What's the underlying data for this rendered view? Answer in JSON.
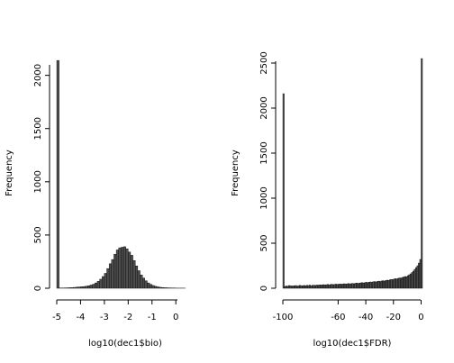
{
  "chart_data": [
    {
      "type": "bar",
      "title": "",
      "xlabel": "log10(dec1$bio)",
      "ylabel": "Frequency",
      "xlim": [
        -5,
        0.75
      ],
      "ylim": [
        0,
        2200
      ],
      "xticks": [
        "-5",
        "-4",
        "-3",
        "-2",
        "-1",
        "0"
      ],
      "yticks": [
        "0",
        "500",
        "1000",
        "1500",
        "2000"
      ],
      "bin_width": 0.1,
      "bins_x0": [
        -5.0,
        -4.9,
        -4.8,
        -4.7,
        -4.6,
        -4.5,
        -4.4,
        -4.3,
        -4.2,
        -4.1,
        -4.0,
        -3.9,
        -3.8,
        -3.7,
        -3.6,
        -3.5,
        -3.4,
        -3.3,
        -3.2,
        -3.1,
        -3.0,
        -2.9,
        -2.8,
        -2.7,
        -2.6,
        -2.5,
        -2.4,
        -2.3,
        -2.2,
        -2.1,
        -2.0,
        -1.9,
        -1.8,
        -1.7,
        -1.6,
        -1.5,
        -1.4,
        -1.3,
        -1.2,
        -1.1,
        -1.0,
        -0.9,
        -0.8,
        -0.7,
        -0.6,
        -0.5,
        -0.4,
        -0.3,
        -0.2,
        -0.1,
        0.0,
        0.1,
        0.2,
        0.3,
        0.4,
        0.5,
        0.6,
        0.7
      ],
      "values": [
        2140,
        2,
        2,
        3,
        4,
        5,
        6,
        8,
        10,
        12,
        14,
        16,
        20,
        24,
        30,
        38,
        50,
        65,
        85,
        110,
        140,
        185,
        230,
        270,
        320,
        360,
        380,
        385,
        390,
        370,
        340,
        310,
        260,
        210,
        165,
        125,
        95,
        70,
        50,
        36,
        26,
        18,
        13,
        9,
        7,
        5,
        4,
        3,
        2,
        2,
        1,
        1,
        1,
        1,
        0,
        0,
        0,
        0
      ]
    },
    {
      "type": "bar",
      "title": "",
      "xlabel": "log10(dec1$FDR)",
      "ylabel": "Frequency",
      "xlim": [
        -100,
        1
      ],
      "ylim": [
        0,
        2600
      ],
      "xticks": [
        "-100",
        "-60",
        "-40",
        "-20",
        "0"
      ],
      "yticks": [
        "0",
        "500",
        "1000",
        "1500",
        "2000",
        "2500"
      ],
      "bin_width": 1,
      "bins_x0": [
        -100,
        -99,
        -98,
        -97,
        -96,
        -95,
        -94,
        -93,
        -92,
        -91,
        -90,
        -89,
        -88,
        -87,
        -86,
        -85,
        -84,
        -83,
        -82,
        -81,
        -80,
        -79,
        -78,
        -77,
        -76,
        -75,
        -74,
        -73,
        -72,
        -71,
        -70,
        -69,
        -68,
        -67,
        -66,
        -65,
        -64,
        -63,
        -62,
        -61,
        -60,
        -59,
        -58,
        -57,
        -56,
        -55,
        -54,
        -53,
        -52,
        -51,
        -50,
        -49,
        -48,
        -47,
        -46,
        -45,
        -44,
        -43,
        -42,
        -41,
        -40,
        -39,
        -38,
        -37,
        -36,
        -35,
        -34,
        -33,
        -32,
        -31,
        -30,
        -29,
        -28,
        -27,
        -26,
        -25,
        -24,
        -23,
        -22,
        -21,
        -20,
        -19,
        -18,
        -17,
        -16,
        -15,
        -14,
        -13,
        -12,
        -11,
        -10,
        -9,
        -8,
        -7,
        -6,
        -5,
        -4,
        -3,
        -2,
        -1,
        0
      ],
      "values": [
        2160,
        20,
        25,
        22,
        30,
        28,
        24,
        26,
        27,
        30,
        22,
        28,
        32,
        26,
        29,
        31,
        27,
        33,
        30,
        35,
        28,
        32,
        34,
        30,
        36,
        33,
        38,
        35,
        37,
        40,
        36,
        39,
        42,
        38,
        41,
        44,
        40,
        43,
        46,
        42,
        45,
        48,
        44,
        47,
        50,
        46,
        49,
        52,
        48,
        51,
        54,
        50,
        55,
        58,
        53,
        57,
        60,
        62,
        58,
        64,
        66,
        62,
        68,
        70,
        66,
        72,
        74,
        70,
        76,
        79,
        75,
        81,
        84,
        80,
        86,
        90,
        87,
        94,
        98,
        95,
        102,
        106,
        104,
        110,
        115,
        112,
        120,
        125,
        130,
        128,
        140,
        150,
        160,
        175,
        190,
        210,
        230,
        250,
        280,
        320,
        2550
      ]
    }
  ]
}
